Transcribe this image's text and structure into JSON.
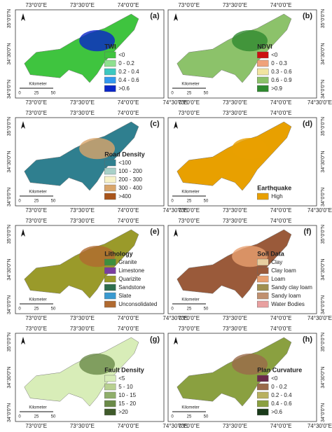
{
  "axes": {
    "x": [
      "73°0'0\"E",
      "73°30'0\"E",
      "74°0'0\"E",
      "74°30'0\"E"
    ],
    "y": [
      "35°0'0\"N",
      "34°30'0\"N",
      "34°0'0\"N"
    ]
  },
  "scale": {
    "unit": "Kilometer",
    "ticks": [
      "0",
      "25",
      "50"
    ]
  },
  "panels": [
    {
      "label": "(a)",
      "legend_title": "TWI",
      "items": [
        {
          "label": "<0",
          "color": "#3fc43f"
        },
        {
          "label": "0 - 0.2",
          "color": "#8fe08f"
        },
        {
          "label": "0.2 - 0.4",
          "color": "#3cc8c0"
        },
        {
          "label": "0.4 - 0.6",
          "color": "#3399ee"
        },
        {
          "label": ">0.6",
          "color": "#0a26c8"
        }
      ]
    },
    {
      "label": "(b)",
      "legend_title": "NDVI",
      "items": [
        {
          "label": "<0",
          "color": "#cc1010"
        },
        {
          "label": "0 - 0.3",
          "color": "#f0a27a"
        },
        {
          "label": "0.3 - 0.6",
          "color": "#f2e4a0"
        },
        {
          "label": "0.6 - 0.9",
          "color": "#8cc26a"
        },
        {
          "label": ">0.9",
          "color": "#2f8a2f"
        }
      ]
    },
    {
      "label": "(c)",
      "legend_title": "Road Density",
      "items": [
        {
          "label": "<100",
          "color": "#2f7f8f"
        },
        {
          "label": "100 - 200",
          "color": "#a8d0c8"
        },
        {
          "label": "200 - 300",
          "color": "#f7f2c8"
        },
        {
          "label": "300 - 400",
          "color": "#d9a56a"
        },
        {
          "label": ">400",
          "color": "#a8541b"
        }
      ]
    },
    {
      "label": "(d)",
      "legend_title": "Earthquake",
      "items": [
        {
          "label": "High",
          "color": "#e8a000"
        }
      ]
    },
    {
      "label": "(e)",
      "legend_title": "Lithology",
      "items": [
        {
          "label": "Granite",
          "color": "#3d8f3d"
        },
        {
          "label": "Limestone",
          "color": "#7a3da0"
        },
        {
          "label": "Quarizite",
          "color": "#9a9a2a"
        },
        {
          "label": "Sandstone",
          "color": "#2e6e4e"
        },
        {
          "label": "Slate",
          "color": "#3a9ad0"
        },
        {
          "label": "Unconsolidated",
          "color": "#b06a30"
        }
      ]
    },
    {
      "label": "(f)",
      "legend_title": "Soil Data",
      "items": [
        {
          "label": "Clay",
          "color": "#e8cfa0"
        },
        {
          "label": "Clay loam",
          "color": "#9a5a3a"
        },
        {
          "label": "Loam",
          "color": "#e8a070"
        },
        {
          "label": "Sandy clay loam",
          "color": "#a09050"
        },
        {
          "label": "Sandy loam",
          "color": "#c09070"
        },
        {
          "label": "Water Bodies",
          "color": "#e8a0a0"
        }
      ]
    },
    {
      "label": "(g)",
      "legend_title": "Fault Density",
      "items": [
        {
          "label": "<5",
          "color": "#d8edb8"
        },
        {
          "label": "5 - 10",
          "color": "#b8d090"
        },
        {
          "label": "10 - 15",
          "color": "#8fae6a"
        },
        {
          "label": "15 - 20",
          "color": "#6a8a48"
        },
        {
          "label": ">20",
          "color": "#3f5a2a"
        }
      ]
    },
    {
      "label": "(h)",
      "legend_title": "Plan Curvature",
      "items": [
        {
          "label": "<0",
          "color": "#6a2a4a"
        },
        {
          "label": "0 - 0.2",
          "color": "#9a6a4a"
        },
        {
          "label": "0.2 - 0.4",
          "color": "#b8b060"
        },
        {
          "label": "0.4 - 0.6",
          "color": "#8aa040"
        },
        {
          "label": ">0.6",
          "color": "#1a3a1a"
        }
      ]
    }
  ]
}
